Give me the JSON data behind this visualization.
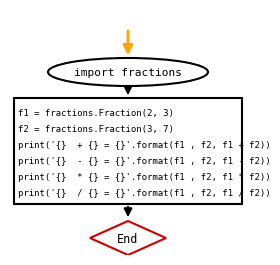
{
  "bg_color": "#ffffff",
  "arrow_color": "#000000",
  "start_arrow_color": "#FFA500",
  "ellipse_text": "import fractions",
  "process_lines": [
    "f1 = fractions.Fraction(2, 3)",
    "f2 = fractions.Fraction(3, 7)",
    "print('{}  + {} = {}'.format(f1 , f2, f1 + f2))",
    "print('{}  - {} = {}'.format(f1 , f2, f1 - f2))",
    "print('{}  * {} = {}'.format(f1 , f2, f1 * f2))",
    "print('{}  / {} = {}'.format(f1 , f2, f1 / f2))"
  ],
  "diamond_text": "End",
  "font_size": 6.5,
  "ellipse_font_size": 8.0,
  "diamond_font_size": 8.5,
  "box_edge_color": "#000000",
  "diamond_edge_color": "#cc0000",
  "ellipse_edge_color": "#000000"
}
